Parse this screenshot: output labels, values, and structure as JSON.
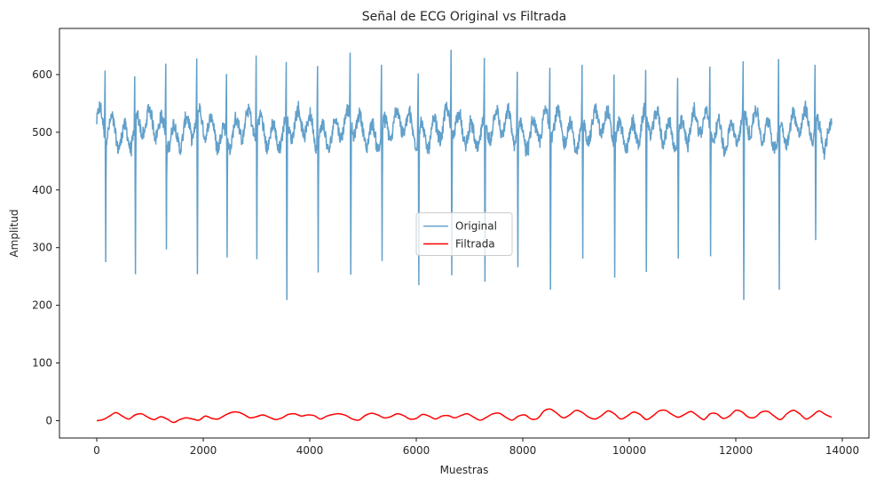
{
  "chart_data": {
    "type": "line",
    "title": "Señal de ECG Original vs Filtrada",
    "xlabel": "Muestras",
    "ylabel": "Amplitud",
    "xlim": [
      -700,
      14500
    ],
    "ylim": [
      -30,
      680
    ],
    "x_ticks": [
      0,
      2000,
      4000,
      6000,
      8000,
      10000,
      12000,
      14000
    ],
    "y_ticks": [
      0,
      100,
      200,
      300,
      400,
      500,
      600
    ],
    "grid": false,
    "legend_position": "center",
    "n_samples": 13800,
    "series": [
      {
        "name": "Original",
        "color": "#1f77b4",
        "opacity": 0.7,
        "baseline": 505,
        "noise_range": [
          450,
          575
        ],
        "r_peaks": [
          {
            "x": 160,
            "peak": 607,
            "trough": 275
          },
          {
            "x": 720,
            "peak": 597,
            "trough": 254
          },
          {
            "x": 1300,
            "peak": 619,
            "trough": 297
          },
          {
            "x": 1880,
            "peak": 628,
            "trough": 254
          },
          {
            "x": 2440,
            "peak": 601,
            "trough": 283
          },
          {
            "x": 3000,
            "peak": 633,
            "trough": 280
          },
          {
            "x": 3560,
            "peak": 622,
            "trough": 209
          },
          {
            "x": 4150,
            "peak": 615,
            "trough": 257
          },
          {
            "x": 4760,
            "peak": 638,
            "trough": 253
          },
          {
            "x": 5350,
            "peak": 617,
            "trough": 277
          },
          {
            "x": 6040,
            "peak": 602,
            "trough": 235
          },
          {
            "x": 6660,
            "peak": 643,
            "trough": 252
          },
          {
            "x": 7280,
            "peak": 629,
            "trough": 241
          },
          {
            "x": 7900,
            "peak": 605,
            "trough": 266
          },
          {
            "x": 8510,
            "peak": 612,
            "trough": 227
          },
          {
            "x": 9120,
            "peak": 617,
            "trough": 281
          },
          {
            "x": 9720,
            "peak": 600,
            "trough": 248
          },
          {
            "x": 10310,
            "peak": 608,
            "trough": 258
          },
          {
            "x": 10910,
            "peak": 594,
            "trough": 281
          },
          {
            "x": 11520,
            "peak": 614,
            "trough": 285
          },
          {
            "x": 12140,
            "peak": 623,
            "trough": 209
          },
          {
            "x": 12810,
            "peak": 627,
            "trough": 227
          },
          {
            "x": 13490,
            "peak": 617,
            "trough": 313
          }
        ]
      },
      {
        "name": "Filtrada",
        "color": "#ff0000",
        "opacity": 1.0,
        "x": [
          0,
          120,
          240,
          360,
          480,
          600,
          720,
          840,
          960,
          1080,
          1200,
          1320,
          1440,
          1560,
          1680,
          1800,
          1920,
          2040,
          2160,
          2280,
          2400,
          2520,
          2640,
          2760,
          2880,
          3000,
          3120,
          3240,
          3360,
          3480,
          3600,
          3720,
          3840,
          3960,
          4080,
          4200,
          4320,
          4440,
          4560,
          4680,
          4800,
          4920,
          5040,
          5160,
          5280,
          5400,
          5520,
          5640,
          5760,
          5880,
          6000,
          6120,
          6240,
          6360,
          6480,
          6600,
          6720,
          6840,
          6960,
          7080,
          7200,
          7320,
          7440,
          7560,
          7680,
          7800,
          7920,
          8040,
          8160,
          8280,
          8400,
          8520,
          8640,
          8760,
          8880,
          9000,
          9120,
          9240,
          9360,
          9480,
          9600,
          9720,
          9840,
          9960,
          10080,
          10200,
          10320,
          10440,
          10560,
          10680,
          10800,
          10920,
          11040,
          11160,
          11280,
          11400,
          11520,
          11640,
          11760,
          11880,
          12000,
          12120,
          12240,
          12360,
          12480,
          12600,
          12720,
          12840,
          12960,
          13080,
          13200,
          13320,
          13440,
          13560,
          13680,
          13800
        ],
        "y": [
          0,
          2,
          8,
          14,
          8,
          3,
          10,
          12,
          6,
          2,
          7,
          3,
          -3,
          2,
          5,
          3,
          1,
          8,
          4,
          3,
          9,
          14,
          15,
          11,
          5,
          7,
          10,
          6,
          2,
          5,
          11,
          12,
          8,
          10,
          9,
          3,
          8,
          11,
          12,
          9,
          3,
          1,
          9,
          13,
          10,
          5,
          7,
          12,
          9,
          3,
          4,
          11,
          8,
          3,
          8,
          9,
          5,
          9,
          12,
          6,
          1,
          6,
          12,
          13,
          6,
          1,
          8,
          10,
          3,
          4,
          17,
          20,
          13,
          5,
          10,
          18,
          14,
          6,
          3,
          9,
          17,
          12,
          3,
          8,
          15,
          11,
          2,
          8,
          17,
          18,
          11,
          6,
          11,
          16,
          9,
          2,
          12,
          12,
          4,
          8,
          18,
          15,
          6,
          6,
          15,
          16,
          8,
          2,
          12,
          18,
          12,
          3,
          9,
          17,
          11,
          6
        ],
        "note_shape": "smooth low-amplitude oscillation between about -3 and 25"
      }
    ]
  }
}
